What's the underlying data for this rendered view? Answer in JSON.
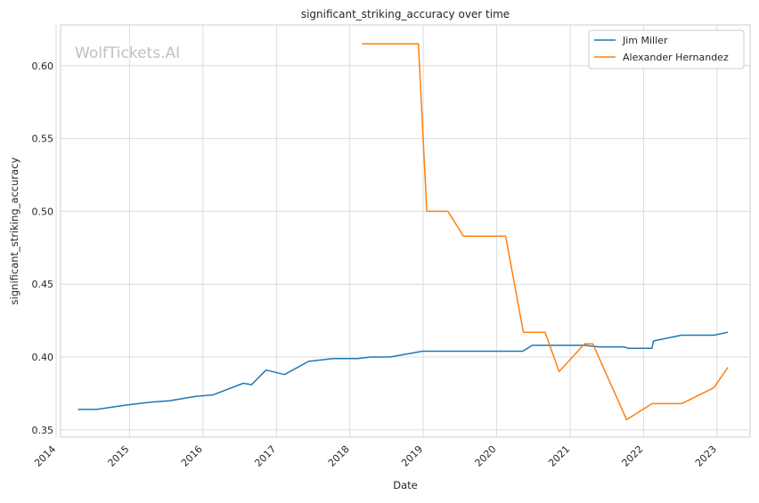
{
  "chart_data": {
    "type": "line",
    "title": "significant_striking_accuracy over time",
    "xlabel": "Date",
    "ylabel": "significant_striking_accuracy",
    "watermark": "WolfTickets.AI",
    "x_ticks": [
      "2014",
      "2015",
      "2016",
      "2017",
      "2018",
      "2019",
      "2020",
      "2021",
      "2022",
      "2023"
    ],
    "y_ticks": [
      "0.35",
      "0.40",
      "0.45",
      "0.50",
      "0.55",
      "0.60"
    ],
    "xlim": [
      "2014-01-23",
      "2023-06-15"
    ],
    "ylim": [
      0.345,
      0.628
    ],
    "grid": true,
    "legend_position": "top-right",
    "series": [
      {
        "name": "Jim Miller",
        "color": "#1f77b4",
        "points": [
          [
            "2014-04-20",
            0.364
          ],
          [
            "2014-07-20",
            0.364
          ],
          [
            "2014-12-15",
            0.367
          ],
          [
            "2015-04-15",
            0.369
          ],
          [
            "2015-07-20",
            0.37
          ],
          [
            "2015-11-25",
            0.373
          ],
          [
            "2016-02-20",
            0.374
          ],
          [
            "2016-07-20",
            0.382
          ],
          [
            "2016-08-30",
            0.381
          ],
          [
            "2016-11-10",
            0.391
          ],
          [
            "2017-02-10",
            0.388
          ],
          [
            "2017-06-10",
            0.397
          ],
          [
            "2017-10-10",
            0.399
          ],
          [
            "2018-02-10",
            0.399
          ],
          [
            "2018-04-14",
            0.4
          ],
          [
            "2018-07-20",
            0.4
          ],
          [
            "2018-12-29",
            0.404
          ],
          [
            "2019-07-13",
            0.404
          ],
          [
            "2019-08-03",
            0.404
          ],
          [
            "2020-01-04",
            0.404
          ],
          [
            "2020-05-10",
            0.404
          ],
          [
            "2020-06-27",
            0.408
          ],
          [
            "2021-03-13",
            0.408
          ],
          [
            "2021-05-22",
            0.407
          ],
          [
            "2021-09-25",
            0.407
          ],
          [
            "2021-10-16",
            0.406
          ],
          [
            "2022-02-12",
            0.406
          ],
          [
            "2022-02-19",
            0.411
          ],
          [
            "2022-07-09",
            0.415
          ],
          [
            "2022-12-17",
            0.415
          ],
          [
            "2023-02-25",
            0.417
          ]
        ]
      },
      {
        "name": "Alexander Hernandez",
        "color": "#ff7f0e",
        "points": [
          [
            "2018-03-03",
            0.615
          ],
          [
            "2018-12-08",
            0.615
          ],
          [
            "2019-01-19",
            0.5
          ],
          [
            "2019-05-04",
            0.5
          ],
          [
            "2019-07-20",
            0.483
          ],
          [
            "2020-02-15",
            0.483
          ],
          [
            "2020-05-13",
            0.417
          ],
          [
            "2020-08-29",
            0.417
          ],
          [
            "2020-11-07",
            0.39
          ],
          [
            "2021-03-13",
            0.409
          ],
          [
            "2021-04-24",
            0.409
          ],
          [
            "2021-10-09",
            0.357
          ],
          [
            "2022-02-12",
            0.368
          ],
          [
            "2022-07-09",
            0.368
          ],
          [
            "2022-12-17",
            0.379
          ],
          [
            "2023-02-25",
            0.393
          ]
        ]
      }
    ]
  }
}
